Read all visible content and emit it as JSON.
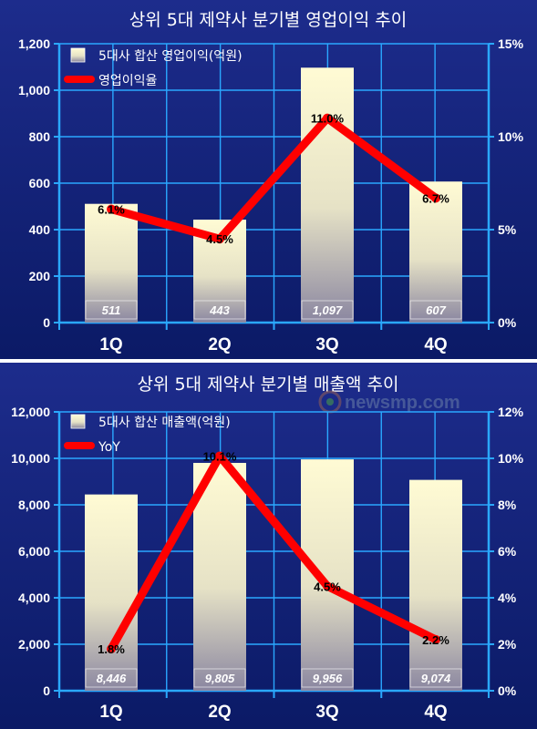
{
  "colors": {
    "bg_top": "#1d2c8c",
    "bg_bottom": "#0b1a66",
    "grid": "#2aa8ff",
    "line": "#ff0000",
    "bar_top": "#fffbd4",
    "bar_bottom": "#8a86a0"
  },
  "watermark": "newsmp.com",
  "chart_data": [
    {
      "type": "bar",
      "title": "상위 5대 제약사 분기별 영업이익 추이",
      "categories": [
        "1Q",
        "2Q",
        "3Q",
        "4Q"
      ],
      "ylim": [
        0,
        1200
      ],
      "y_ticks": [
        "0",
        "200",
        "400",
        "600",
        "800",
        "1,000",
        "1,200"
      ],
      "y2lim": [
        0,
        15
      ],
      "y2_ticks": [
        "0%",
        "5%",
        "10%",
        "15%"
      ],
      "grid": true,
      "legend_position": "top-left",
      "series": [
        {
          "name": "5대사 합산 영업이익(억원)",
          "type": "bar",
          "values": [
            511,
            443,
            1097,
            607
          ],
          "labels": [
            "511",
            "443",
            "1,097",
            "607"
          ]
        },
        {
          "name": "영업이익율",
          "type": "line",
          "axis": "right",
          "values": [
            6.1,
            4.5,
            11.0,
            6.7
          ],
          "labels": [
            "6.1%",
            "4.5%",
            "11.0%",
            "6.7%"
          ]
        }
      ]
    },
    {
      "type": "bar",
      "title": "상위 5대 제약사 분기별 매출액 추이",
      "categories": [
        "1Q",
        "2Q",
        "3Q",
        "4Q"
      ],
      "ylim": [
        0,
        12000
      ],
      "y_ticks": [
        "0",
        "2,000",
        "4,000",
        "6,000",
        "8,000",
        "10,000",
        "12,000"
      ],
      "y2lim": [
        0,
        12
      ],
      "y2_ticks": [
        "0%",
        "2%",
        "4%",
        "6%",
        "8%",
        "10%",
        "12%"
      ],
      "grid": true,
      "legend_position": "top-left",
      "series": [
        {
          "name": "5대사 합산 매출액(억원)",
          "type": "bar",
          "values": [
            8446,
            9805,
            9956,
            9074
          ],
          "labels": [
            "8,446",
            "9,805",
            "9,956",
            "9,074"
          ]
        },
        {
          "name": "YoY",
          "type": "line",
          "axis": "right",
          "values": [
            1.8,
            10.1,
            4.5,
            2.2
          ],
          "labels": [
            "1.8%",
            "10.1%",
            "4.5%",
            "2.2%"
          ]
        }
      ]
    }
  ]
}
